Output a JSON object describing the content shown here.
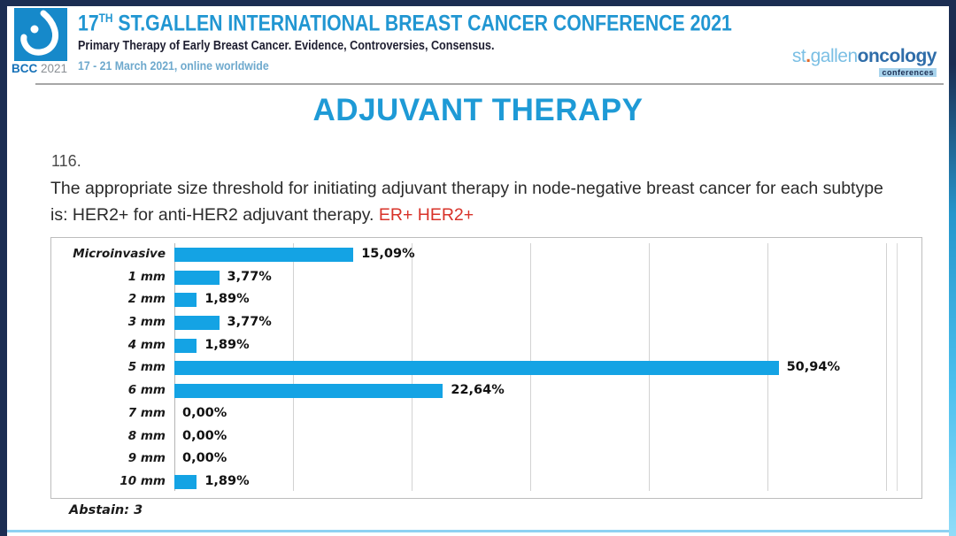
{
  "colors": {
    "frame_navy": "#1b2d52",
    "bottom_accent": "#8ed1f2",
    "bar_blue": "#14a3e4",
    "title_blue": "#1e9ad6",
    "header_blue": "#2196d2",
    "highlight_red": "#d8332a"
  },
  "header": {
    "logo": {
      "bcc": "BCC",
      "year": "2021"
    },
    "title_prefix": "17",
    "title_sup": "TH",
    "title_rest": " ST.GALLEN INTERNATIONAL BREAST CANCER CONFERENCE 2021",
    "subtitle": "Primary Therapy of Early Breast Cancer. Evidence, Controversies, Consensus.",
    "date": "17 - 21 March 2021, online worldwide",
    "brand": {
      "st": "st",
      "dot": ".",
      "gallen": "gallen",
      "oncology": "oncology",
      "conferences": "conferences"
    }
  },
  "main": {
    "page_title": "ADJUVANT THERAPY",
    "question_number": "116.",
    "question_text": "The appropriate size threshold for initiating adjuvant therapy in node-negative breast cancer for each subtype is: HER2+ for anti-HER2 adjuvant therapy. ",
    "question_highlight": "ER+ HER2+",
    "abstain": "Abstain: 3"
  },
  "chart_data": {
    "type": "bar",
    "orientation": "horizontal",
    "title": "",
    "xlabel": "",
    "ylabel": "",
    "categories": [
      "Microinvasive",
      "1 mm",
      "2 mm",
      "3 mm",
      "4 mm",
      "5 mm",
      "6 mm",
      "7 mm",
      "8 mm",
      "9 mm",
      "10 mm"
    ],
    "values": [
      15.09,
      3.77,
      1.89,
      3.77,
      1.89,
      50.94,
      22.64,
      0,
      0,
      0,
      1.89
    ],
    "value_labels": [
      "15,09%",
      "3,77%",
      "1,89%",
      "3,77%",
      "1,89%",
      "50,94%",
      "22,64%",
      "0,00%",
      "0,00%",
      "0,00%",
      "1,89%"
    ],
    "xlim": [
      0,
      60
    ],
    "gridline_step": 10,
    "grid": true,
    "legend": false,
    "bar_color": "#14a3e4"
  }
}
